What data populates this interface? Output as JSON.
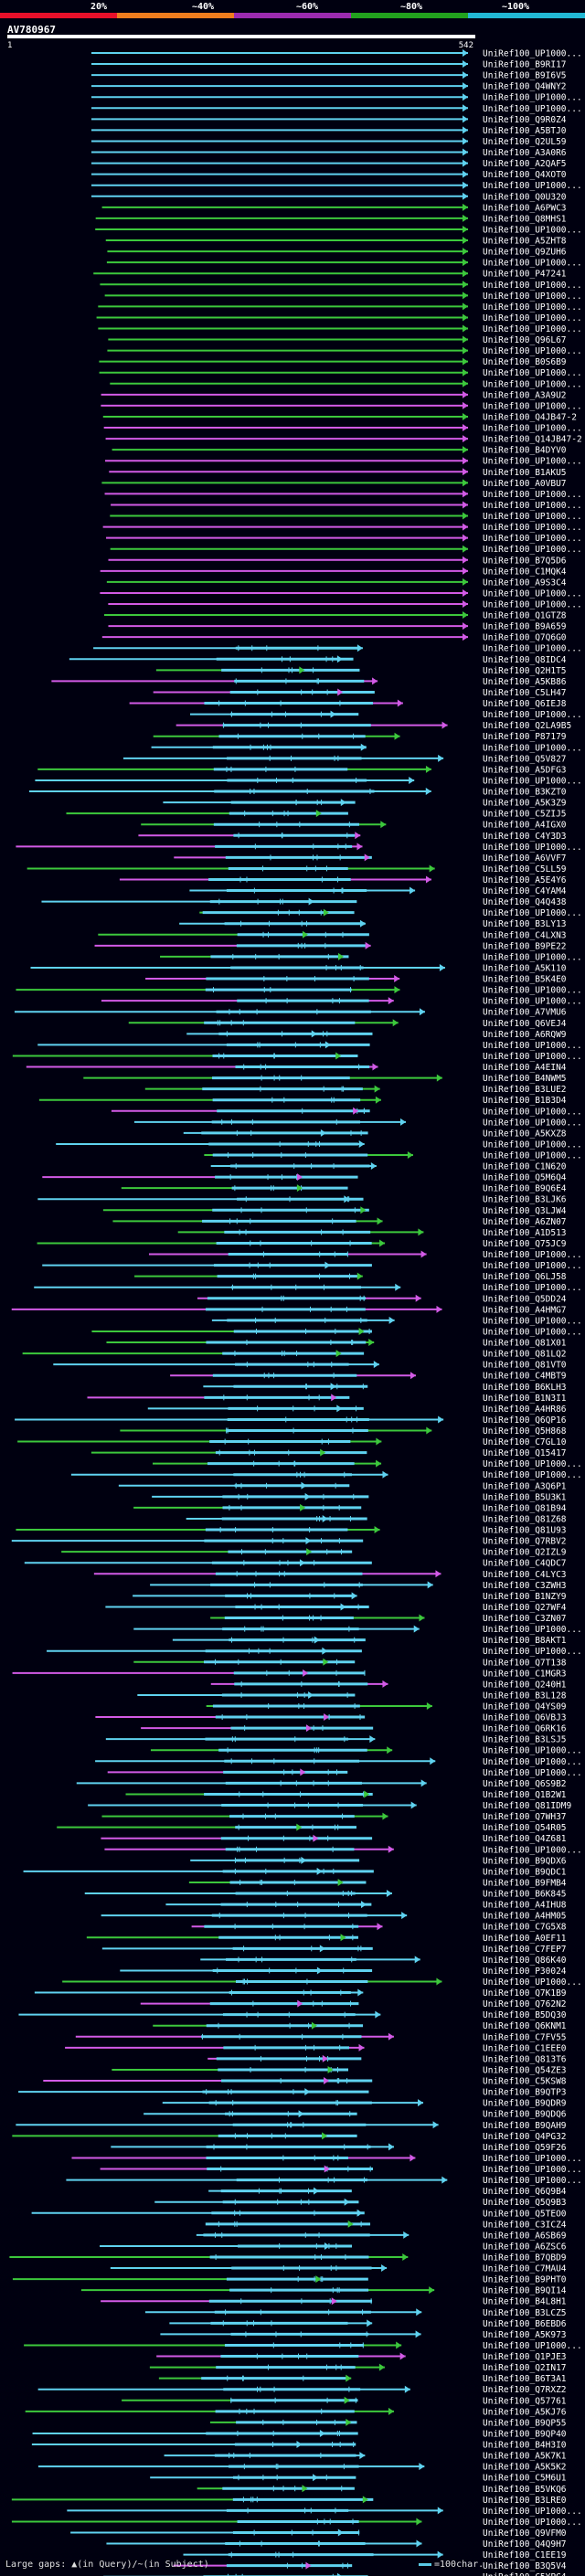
{
  "query": {
    "title": "AV780967",
    "start": "1",
    "end": "542"
  },
  "scale": {
    "labels": [
      "20%",
      "~40%",
      "~60%",
      "~80%",
      "~100%"
    ],
    "colors": [
      "#e8102a",
      "#f07d1e",
      "#9c2bb0",
      "#22a21e",
      "#22b8d4"
    ]
  },
  "identity_colors": {
    "cyan": "#5fd2f0",
    "green": "#3cc83c",
    "magenta": "#d25ae6",
    "dim": "#2a1030"
  },
  "hits": [
    "UniRef100_UP1000...",
    "UniRef100_B9RI17",
    "UniRef100_B9I6V5",
    "UniRef100_Q4WNY2",
    "UniRef100_UP1000...",
    "UniRef100_UP1000...",
    "UniRef100_Q9R0Z4",
    "UniRef100_A5BTJ0",
    "UniRef100_Q2UL59",
    "UniRef100_A3A0R6",
    "UniRef100_A2QAF5",
    "UniRef100_Q4XOT0",
    "UniRef100_UP1000...",
    "UniRef100_Q0U320",
    "UniRef100_A6PWC3",
    "UniRef100_Q8MHS1",
    "UniRef100_UP1000...",
    "UniRef100_A5ZHT8",
    "UniRef100_Q9ZUH6",
    "UniRef100_UP1000...",
    "UniRef100_P47241",
    "UniRef100_UP1000...",
    "UniRef100_UP1000...",
    "UniRef100_UP1000...",
    "UniRef100_UP1000...",
    "UniRef100_UP1000...",
    "UniRef100_Q96L67",
    "UniRef100_UP1000...",
    "UniRef100_B0S6B9",
    "UniRef100_UP1000...",
    "UniRef100_UP1000...",
    "UniRef100_A3A9U2",
    "UniRef100_UP1000...",
    "UniRef100_Q4JB47-2",
    "UniRef100_UP1000...",
    "UniRef100_Q14JB47-2",
    "UniRef100_B4DYV0",
    "UniRef100_UP1000...",
    "UniRef100_B1AKU5",
    "UniRef100_A0VBU7",
    "UniRef100_UP1000...",
    "UniRef100_UP1000...",
    "UniRef100_UP1000...",
    "UniRef100_UP1000...",
    "UniRef100_UP1000...",
    "UniRef100_UP1000...",
    "UniRef100_B7Q5D6",
    "UniRef100_C1MQK4",
    "UniRef100_A9S3C4",
    "UniRef100_UP1000...",
    "UniRef100_UP1000...",
    "UniRef100_Q1GTZ8",
    "UniRef100_B9A659",
    "UniRef100_Q7Q6G0",
    "UniRef100_UP1000...",
    "UniRef100_Q8IDC4",
    "UniRef100_Q2H1T5",
    "UniRef100_A5KB86",
    "UniRef100_C5LH47",
    "UniRef100_Q6IEJ8",
    "UniRef100_UP1000...",
    "UniRef100_Q2LA9B5",
    "UniRef100_P87179",
    "UniRef100_UP1000...",
    "UniRef100_Q5V827",
    "UniRef100_A5DFG3",
    "UniRef100_UP1000...",
    "UniRef100_B3KZT0",
    "UniRef100_A5K3Z9",
    "UniRef100_C5ZIJ5",
    "UniRef100_A4IGX0",
    "UniRef100_C4Y3D3",
    "UniRef100_UP1000...",
    "UniRef100_A6VVF7",
    "UniRef100_C5LL59",
    "UniRef100_A5E4Y6",
    "UniRef100_C4YAM4",
    "UniRef100_Q4Q438",
    "UniRef100_UP1000...",
    "UniRef100_B3LY13",
    "UniRef100_C4LXN3",
    "UniRef100_B9PE22",
    "UniRef100_UP1000...",
    "UniRef100_A5K110",
    "UniRef100_B5K4E0",
    "UniRef100_UP1000...",
    "UniRef100_UP1000...",
    "UniRef100_A7VMU6",
    "UniRef100_Q6VEJ4",
    "UniRef100_A6RQW9",
    "UniRef100_UP1000...",
    "UniRef100_UP1000...",
    "UniRef100_A4EIN4",
    "UniRef100_B4NWM5",
    "UniRef100_B3LUE2",
    "UniRef100_B1B3D4",
    "UniRef100_UP1000...",
    "UniRef100_UP1000...",
    "UniRef100_A5KXZ8",
    "UniRef100_UP1000...",
    "UniRef100_UP1000...",
    "UniRef100_C1N620",
    "UniRef100_Q5M6Q4",
    "UniRef100_B9Q6E4",
    "UniRef100_B3LJK6",
    "UniRef100_Q3LJW4",
    "UniRef100_A6ZN07",
    "UniRef100_A1D513",
    "UniRef100_Q75JC9",
    "UniRef100_UP1000...",
    "UniRef100_UP1000...",
    "UniRef100_Q6LJ58",
    "UniRef100_UP1000...",
    "UniRef100_Q5DD24",
    "UniRef100_A4HMG7",
    "UniRef100_UP1000...",
    "UniRef100_UP1000...",
    "UniRef100_Q81X01",
    "UniRef100_Q81LQ2",
    "UniRef100_Q81VT0",
    "UniRef100_C4MBT9",
    "UniRef100_B6KLH3",
    "UniRef100_B1N3I1",
    "UniRef100_A4HR86",
    "UniRef100_Q6QP16",
    "UniRef100_Q5H868",
    "UniRef100_C7GL10",
    "UniRef100_Q15417",
    "UniRef100_UP1000...",
    "UniRef100_UP1000...",
    "UniRef100_A3Q6P1",
    "UniRef100_B5U3K1",
    "UniRef100_Q81B94",
    "UniRef100_Q81Z68",
    "UniRef100_Q81U93",
    "UniRef100_Q7RBV2",
    "UniRef100_Q2IZL9",
    "UniRef100_C4QDC7",
    "UniRef100_C4LYC3",
    "UniRef100_C3ZWH3",
    "UniRef100_B1NZY9",
    "UniRef100_Q27WF4",
    "UniRef100_C3ZN07",
    "UniRef100_UP1000...",
    "UniRef100_B8AKT1",
    "UniRef100_UP1000...",
    "UniRef100_Q7T138",
    "UniRef100_C1MGR3",
    "UniRef100_Q240H1",
    "UniRef100_B3L128",
    "UniRef100_Q4YS09",
    "UniRef100_Q6VBJ3",
    "UniRef100_Q6RK16",
    "UniRef100_B3LSJ5",
    "UniRef100_UP1000...",
    "UniRef100_UP1000...",
    "UniRef100_UP1000...",
    "UniRef100_Q6S9B2",
    "UniRef100_Q1B2W1",
    "UniRef100_Q81IDM9",
    "UniRef100_Q7WH37",
    "UniRef100_Q54R05",
    "UniRef100_Q4Z681",
    "UniRef100_UP1000...",
    "UniRef100_B9QDX6",
    "UniRef100_B9QDC1",
    "UniRef100_B9FMB4",
    "UniRef100_B6K845",
    "UniRef100_A4IHU8",
    "UniRef100_A4HM05",
    "UniRef100_C7G5X8",
    "UniRef100_A0EF11",
    "UniRef100_C7FEP7",
    "UniRef100_Q86K40",
    "UniRef100_P30024",
    "UniRef100_UP1000...",
    "UniRef100_Q7K1B9",
    "UniRef100_Q762N2",
    "UniRef100_B5DQ30",
    "UniRef100_Q6KNM1",
    "UniRef100_C7FV55",
    "UniRef100_C1EEE0",
    "UniRef100_Q813T6",
    "UniRef100_Q54ZE3",
    "UniRef100_C5KSW8",
    "UniRef100_B9QTP3",
    "UniRef100_B9QDR9",
    "UniRef100_B9QDQ6",
    "UniRef100_B9QAH9",
    "UniRef100_Q4PG32",
    "UniRef100_Q59F26",
    "UniRef100_UP1000...",
    "UniRef100_UP1000...",
    "UniRef100_UP1000...",
    "UniRef100_Q6Q9B4",
    "UniRef100_Q5Q9B3",
    "UniRef100_Q5TEO0",
    "UniRef100_C3ICZ4",
    "UniRef100_A6SB69",
    "UniRef100_A6ZSC6",
    "UniRef100_B7QBD9",
    "UniRef100_C7MAU4",
    "UniRef100_B9PHT0",
    "UniRef100_B9QI14",
    "UniRef100_B4L8H1",
    "UniRef100_B3LCZ5",
    "UniRef100_B6EBD6",
    "UniRef100_A5K973",
    "UniRef100_UP1000...",
    "UniRef100_Q1PJE3",
    "UniRef100_Q2IN17",
    "UniRef100_B6T3A1",
    "UniRef100_Q7RXZ2",
    "UniRef100_Q57761",
    "UniRef100_A5KJ76",
    "UniRef100_B9QP55",
    "UniRef100_B9QP40",
    "UniRef100_B4H3I0",
    "UniRef100_A5K7K1",
    "UniRef100_A5K5K2",
    "UniRef100_C5M6U1",
    "UniRef100_B5VKQ6",
    "UniRef100_B3LRE0",
    "UniRef100_UP1000...",
    "UniRef100_UP1000...",
    "UniRef100_Q9VFM0",
    "UniRef100_Q4Q9H7",
    "UniRef100_C1EE19",
    "UniRef100_B3Q5V4",
    "UniRef100_C5YPG4",
    "UniRef100_Q4YB57"
  ],
  "legend": {
    "text": "Large gaps: ▲(in Query)/~(in Subject)",
    "scale_label": "=100char."
  }
}
